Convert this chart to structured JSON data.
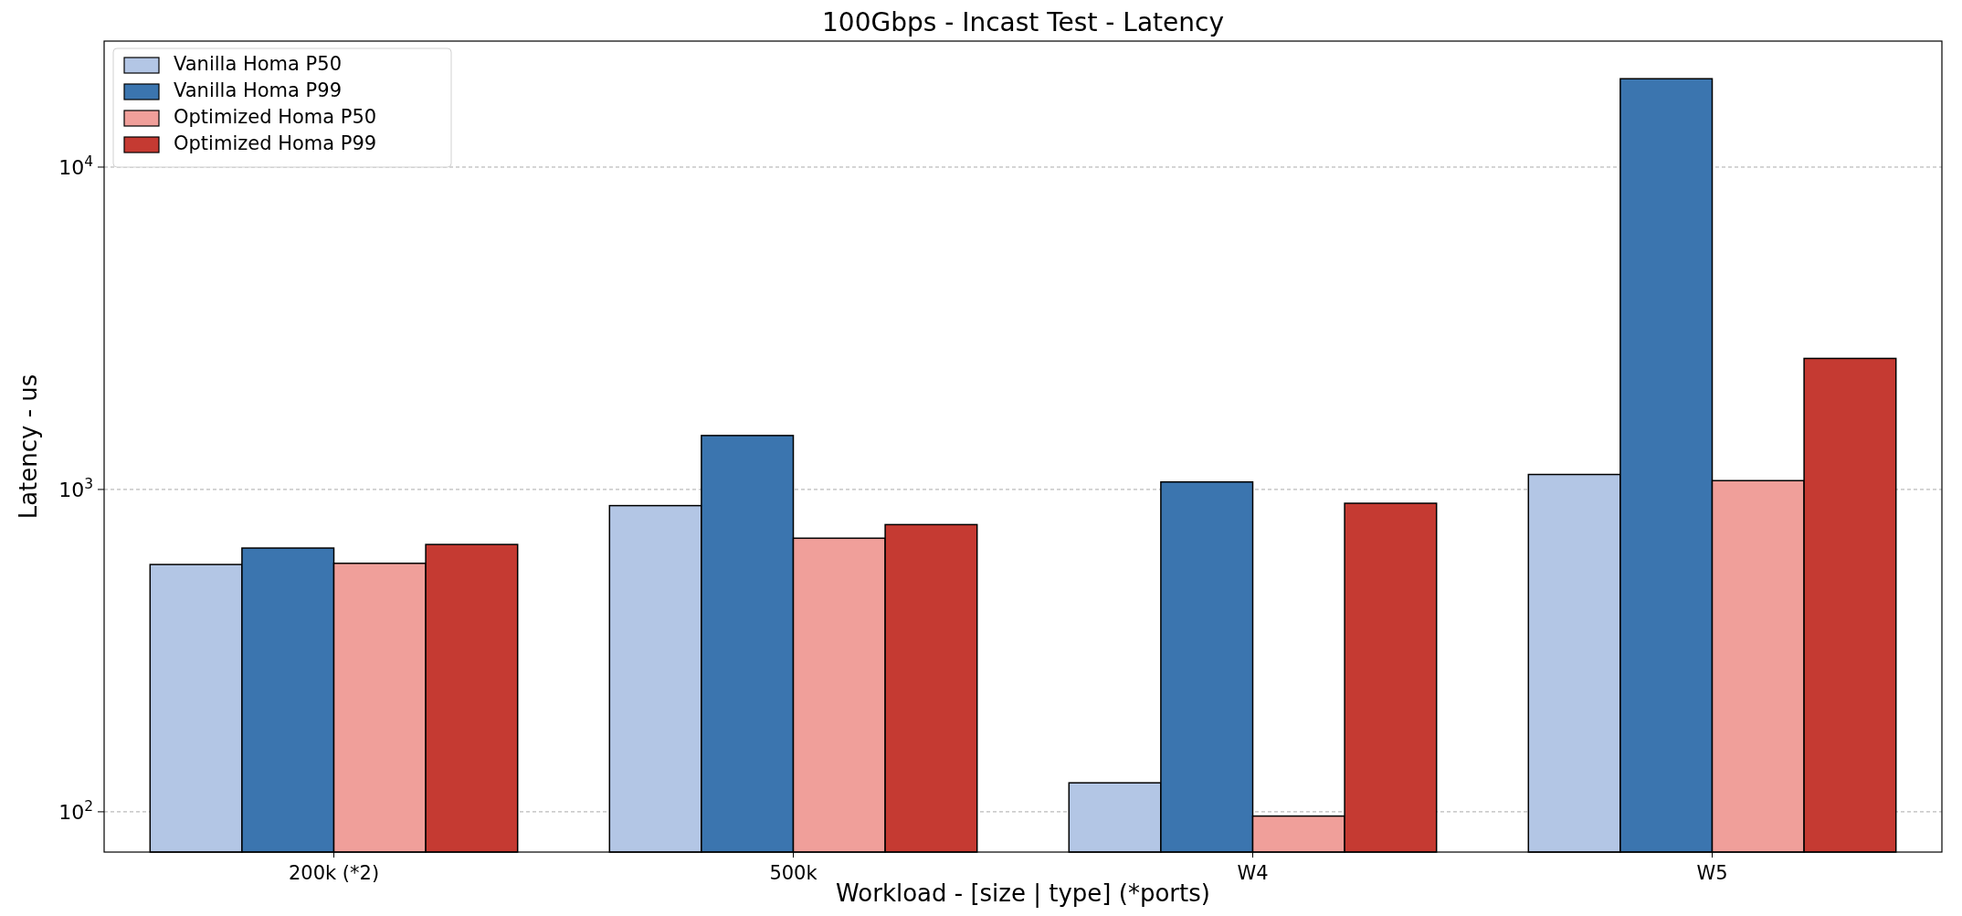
{
  "chart_data": {
    "type": "bar",
    "title": "100Gbps - Incast Test - Latency",
    "xlabel": "Workload - [size | type] (*ports)",
    "ylabel": "Latency - us",
    "categories": [
      "200k (*2)",
      "500k",
      "W4",
      "W5"
    ],
    "series": [
      {
        "name": "Vanilla Homa P50",
        "color": "#b3c6e5",
        "values": [
          585,
          891,
          123,
          1113
        ]
      },
      {
        "name": "Vanilla Homa P99",
        "color": "#3b75af",
        "values": [
          658,
          1470,
          1055,
          18800
        ]
      },
      {
        "name": "Optimized Homa P50",
        "color": "#f09f9a",
        "values": [
          590,
          706,
          97,
          1065
        ]
      },
      {
        "name": "Optimized Homa P99",
        "color": "#c53a32",
        "values": [
          675,
          778,
          906,
          2550
        ]
      }
    ],
    "log": "y",
    "ylim": [
      75,
      24600
    ],
    "yticks": [
      {
        "value": 100,
        "label": "10$^{2}$"
      },
      {
        "value": 1000,
        "label": "10$^{3}$"
      },
      {
        "value": 10000,
        "label": "10$^{4}$"
      }
    ],
    "grid": "y",
    "legend": "top left"
  }
}
